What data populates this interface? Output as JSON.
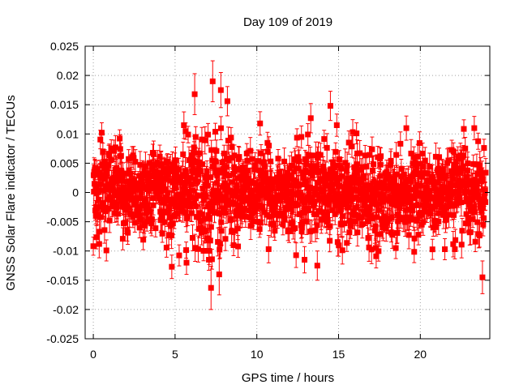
{
  "chart_data": {
    "type": "scatter",
    "title": "Day 109 of 2019",
    "xlabel": "GPS time / hours",
    "ylabel": "GNSS Solar Flare indicator / TECUs",
    "xlim": [
      -0.5,
      24.25
    ],
    "ylim": [
      -0.025,
      0.025
    ],
    "xticks": [
      0,
      5,
      10,
      15,
      20
    ],
    "xtick_labels": [
      "0",
      "5",
      "10",
      "15",
      "20"
    ],
    "yticks": [
      -0.025,
      -0.02,
      -0.015,
      -0.01,
      -0.005,
      0,
      0.005,
      0.01,
      0.015,
      0.02,
      0.025
    ],
    "ytick_labels": [
      "-0.025",
      "-0.02",
      "-0.015",
      "-0.01",
      "-0.005",
      "0",
      "0.005",
      "0.01",
      "0.015",
      "0.02",
      "0.025"
    ],
    "grid": true,
    "series_color": "#ff0000",
    "marker": "square",
    "noise": {
      "samples": 1400,
      "x_range": [
        0,
        24
      ],
      "base_std": 0.0038,
      "error_bar_half_width": 0.0018
    },
    "notable_points": [
      {
        "x": 7.3,
        "y": 0.019,
        "err": 0.0035
      },
      {
        "x": 7.2,
        "y": -0.0163,
        "err": 0.0037
      },
      {
        "x": 7.7,
        "y": -0.014,
        "err": 0.0035
      },
      {
        "x": 6.2,
        "y": 0.0168,
        "err": 0.0035
      },
      {
        "x": 8.2,
        "y": 0.0156,
        "err": 0.0025
      },
      {
        "x": 7.8,
        "y": 0.0175,
        "err": 0.003
      },
      {
        "x": 14.5,
        "y": 0.0148,
        "err": 0.0025
      },
      {
        "x": 13.3,
        "y": 0.0127,
        "err": 0.0025
      },
      {
        "x": 13.7,
        "y": -0.0125,
        "err": 0.0025
      },
      {
        "x": 23.8,
        "y": -0.0145,
        "err": 0.0028
      },
      {
        "x": 4.8,
        "y": -0.0127,
        "err": 0.002
      },
      {
        "x": 10.2,
        "y": 0.0118,
        "err": 0.002
      },
      {
        "x": 17.3,
        "y": -0.0109,
        "err": 0.002
      },
      {
        "x": 18.5,
        "y": -0.0095,
        "err": 0.0018
      },
      {
        "x": 5.7,
        "y": -0.012,
        "err": 0.002
      },
      {
        "x": 16.1,
        "y": 0.0101,
        "err": 0.0018
      },
      {
        "x": 23.3,
        "y": 0.011,
        "err": 0.002
      },
      {
        "x": 21.5,
        "y": -0.0097,
        "err": 0.0018
      },
      {
        "x": 0.8,
        "y": -0.0099,
        "err": 0.0018
      }
    ]
  }
}
